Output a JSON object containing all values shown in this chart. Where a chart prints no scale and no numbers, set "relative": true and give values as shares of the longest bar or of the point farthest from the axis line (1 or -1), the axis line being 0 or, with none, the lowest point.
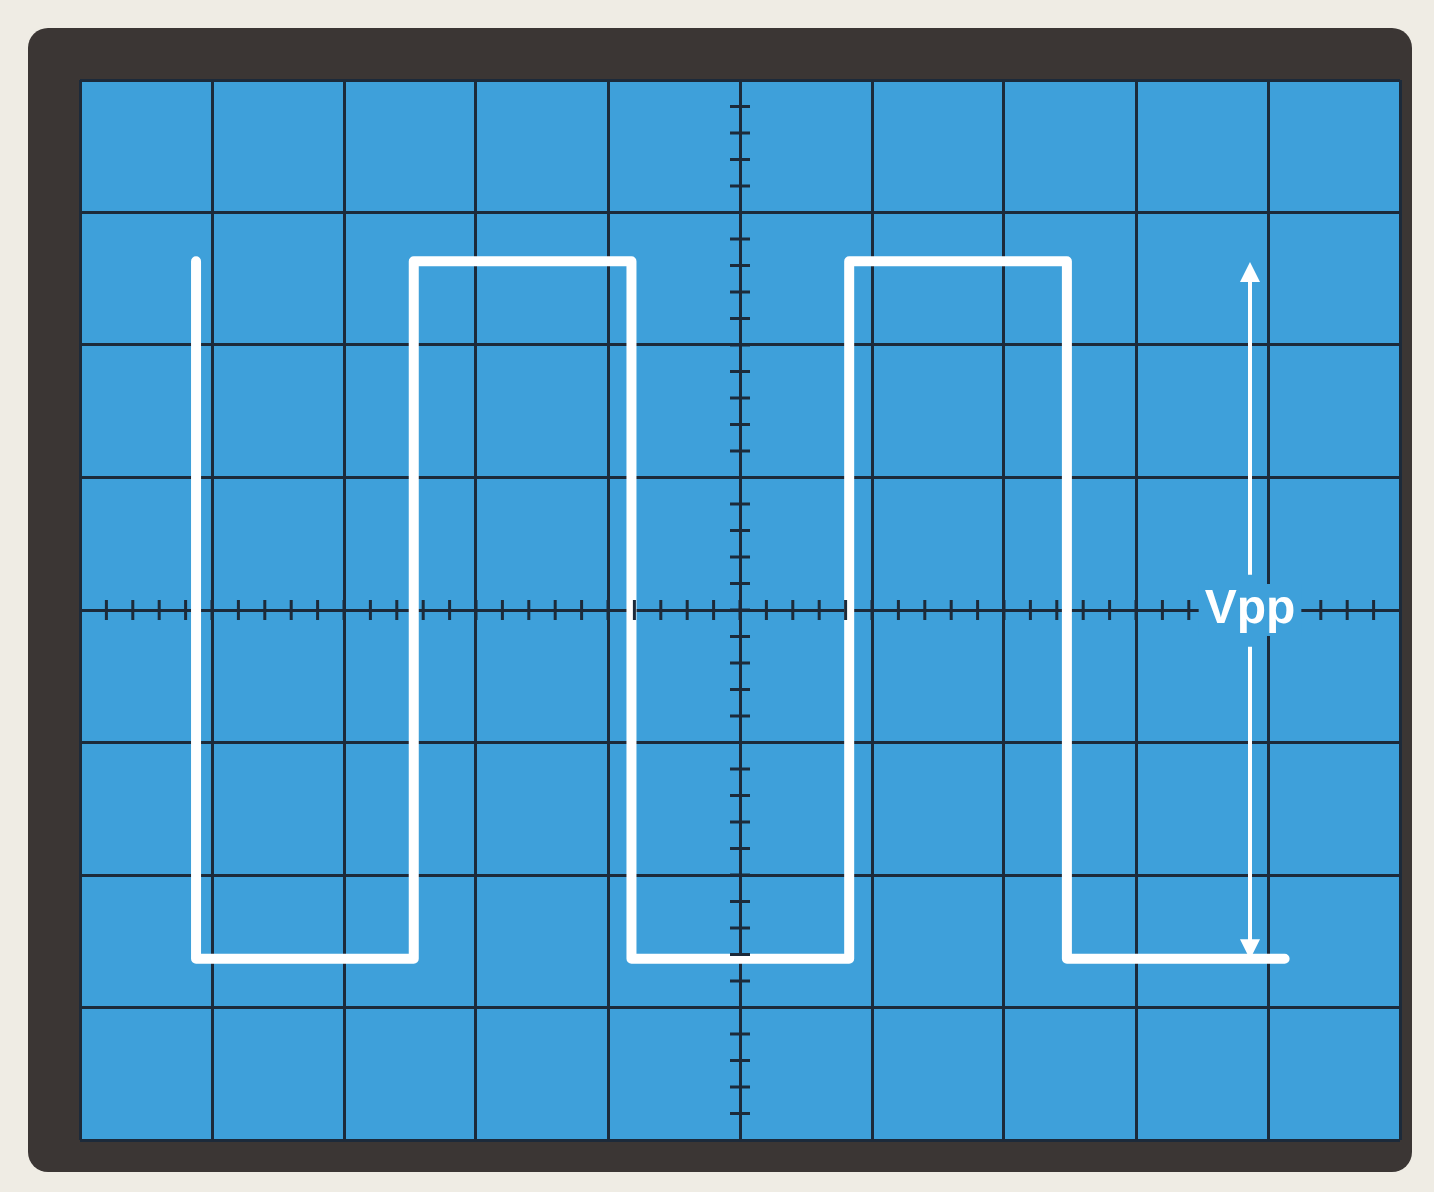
{
  "chart_data": {
    "type": "step",
    "relative": true,
    "tick_labels": false,
    "grid": true,
    "legend": false,
    "marker": "none",
    "line_style": "solid",
    "categories": [
      null,
      null,
      null,
      null,
      null,
      null
    ],
    "series": [
      {
        "color": "#ffffff",
        "values": [
          1,
          -1,
          1,
          -1,
          1,
          -1
        ]
      }
    ],
    "annotations": [
      "Vpp"
    ]
  }
}
